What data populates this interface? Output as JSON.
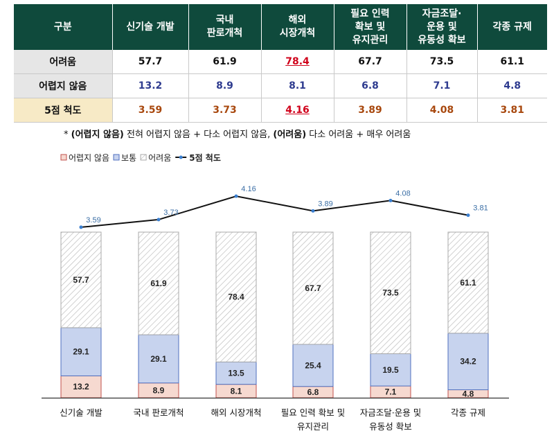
{
  "table": {
    "header": [
      "구분",
      "신기술 개발",
      "국내\n판로개척",
      "해외\n시장개척",
      "필요 인력\n확보 및\n유지관리",
      "자금조달·\n운용 및\n유동성 확보",
      "각종 규제"
    ],
    "rows": [
      {
        "label": "어려움",
        "values": [
          "57.7",
          "61.9",
          "78.4",
          "67.7",
          "73.5",
          "61.1"
        ]
      },
      {
        "label": "어렵지 않음",
        "values": [
          "13.2",
          "8.9",
          "8.1",
          "6.8",
          "7.1",
          "4.8"
        ]
      },
      {
        "label": "5점 척도",
        "values": [
          "3.59",
          "3.73",
          "4.16",
          "3.89",
          "4.08",
          "3.81"
        ]
      }
    ]
  },
  "note": {
    "prefix": "* ",
    "term1": "(어렵지 않음)",
    "def1": " 전혀 어렵지 않음 + 다소 어렵지 않음, ",
    "term2": "(어려움)",
    "def2": " 다소 어려움 + 매우 어려움"
  },
  "colors": {
    "header_bg": "#0f4a3c",
    "easy_fill": "#f6d9d0",
    "easy_stroke": "#c0504d",
    "normal_fill": "#c7d3ee",
    "normal_stroke": "#4f6fbf",
    "hard_stroke": "#a8a8a8",
    "line": "#111111",
    "marker": "#3a7fd0"
  },
  "chart_data": {
    "type": "bar",
    "stacked": true,
    "categories": [
      "신기술 개발",
      "국내 판로개척",
      "해외 시장개척",
      "필요 인력 확보 및\n유지관리",
      "자금조달·운용 및\n유동성 확보",
      "각종 규제"
    ],
    "series": [
      {
        "name": "어렵지 않음",
        "values": [
          13.2,
          8.9,
          8.1,
          6.8,
          7.1,
          4.8
        ]
      },
      {
        "name": "보통",
        "values": [
          29.1,
          29.1,
          13.5,
          25.4,
          19.5,
          34.2
        ]
      },
      {
        "name": "어려움",
        "values": [
          57.7,
          61.9,
          78.4,
          67.7,
          73.5,
          61.1
        ]
      }
    ],
    "line_series": {
      "name": "5점 척도",
      "type": "line",
      "values": [
        3.59,
        3.73,
        4.16,
        3.89,
        4.08,
        3.81
      ]
    },
    "legend": {
      "position": "top-left"
    }
  }
}
